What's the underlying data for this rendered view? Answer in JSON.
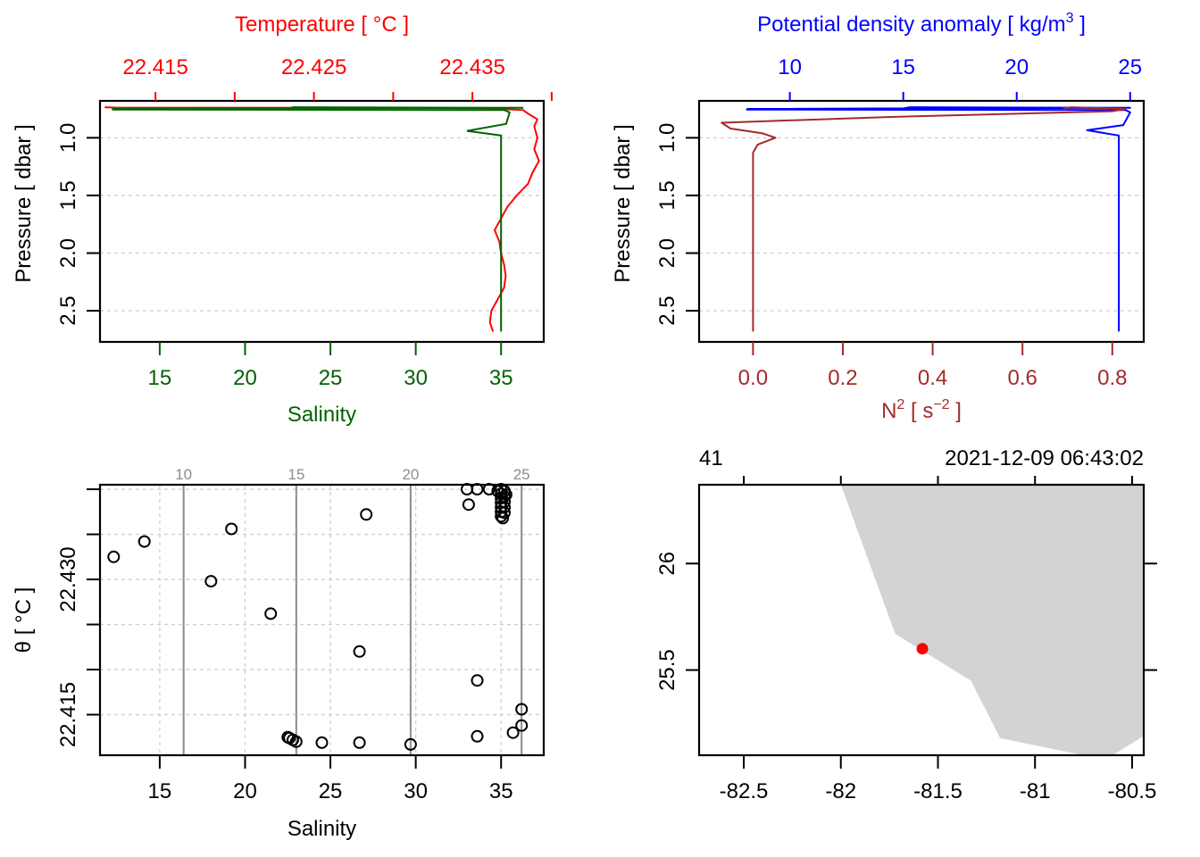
{
  "chart_data": [
    {
      "id": "profile-salinity-temperature",
      "type": "line",
      "title": "",
      "top_axis": {
        "label": "Temperature [ °C ]",
        "color": "#ff0000",
        "range": [
          22.4115,
          22.4395
        ],
        "ticks": [
          22.415,
          22.42,
          22.425,
          22.43,
          22.435,
          22.44
        ],
        "tick_labels": [
          "22.415",
          "",
          "22.425",
          "",
          "22.435",
          ""
        ]
      },
      "bottom_axis": {
        "label": "Salinity",
        "color": "#006400",
        "range": [
          11.5,
          37.5
        ],
        "ticks": [
          15,
          20,
          25,
          30,
          35
        ],
        "tick_labels": [
          "15",
          "20",
          "25",
          "30",
          "35"
        ]
      },
      "y_axis": {
        "label": "Pressure [ dbar ]",
        "range": [
          2.77,
          0.68
        ],
        "reversed": true,
        "ticks": [
          1.0,
          1.5,
          2.0,
          2.5
        ],
        "tick_labels": [
          "1.0",
          "1.5",
          "2.0",
          "2.5"
        ]
      },
      "grid": true,
      "series": [
        {
          "name": "Temperature",
          "color": "#ff0000",
          "axis": "top",
          "points": [
            [
              22.4118,
              0.735
            ],
            [
              22.4125,
              0.738
            ],
            [
              22.428,
              0.74
            ],
            [
              22.436,
              0.745
            ],
            [
              22.4382,
              0.76
            ],
            [
              22.4385,
              0.79
            ],
            [
              22.4391,
              0.84
            ],
            [
              22.4389,
              0.9
            ],
            [
              22.439,
              0.95
            ],
            [
              22.4391,
              1.0
            ],
            [
              22.4389,
              1.1
            ],
            [
              22.4392,
              1.2
            ],
            [
              22.4388,
              1.3
            ],
            [
              22.4385,
              1.4
            ],
            [
              22.4378,
              1.5
            ],
            [
              22.4372,
              1.6
            ],
            [
              22.4368,
              1.7
            ],
            [
              22.4364,
              1.8
            ],
            [
              22.4367,
              1.9
            ],
            [
              22.4368,
              2.0
            ],
            [
              22.437,
              2.1
            ],
            [
              22.4371,
              2.2
            ],
            [
              22.437,
              2.3
            ],
            [
              22.4366,
              2.4
            ],
            [
              22.4362,
              2.5
            ],
            [
              22.4361,
              2.6
            ],
            [
              22.4363,
              2.68
            ]
          ]
        },
        {
          "name": "Salinity",
          "color": "#006400",
          "axis": "bottom",
          "points": [
            [
              12.2,
              0.75
            ],
            [
              22.6,
              0.745
            ],
            [
              22.8,
              0.735
            ],
            [
              36.3,
              0.74
            ],
            [
              23.0,
              0.745
            ],
            [
              12.2,
              0.755
            ],
            [
              35.2,
              0.76
            ],
            [
              35.5,
              0.78
            ],
            [
              35.3,
              0.88
            ],
            [
              33.0,
              0.94
            ],
            [
              35.0,
              0.98
            ],
            [
              35.0,
              1.5
            ],
            [
              35.0,
              2.0
            ],
            [
              35.0,
              2.68
            ]
          ]
        }
      ]
    },
    {
      "id": "profile-density-n2",
      "type": "line",
      "title": "",
      "top_axis": {
        "label": "Potential density anomaly [ kg/m³ ]",
        "color": "#0000ff",
        "range": [
          6.0,
          25.6
        ],
        "ticks": [
          10,
          15,
          20,
          25
        ],
        "tick_labels": [
          "10",
          "15",
          "20",
          "25"
        ]
      },
      "bottom_axis": {
        "label": "N² [ s⁻² ]",
        "color": "#a52a2a",
        "range": [
          -0.12,
          0.87
        ],
        "ticks": [
          0.0,
          0.2,
          0.4,
          0.6,
          0.8
        ],
        "tick_labels": [
          "0.0",
          "0.2",
          "0.4",
          "0.6",
          "0.8"
        ]
      },
      "y_axis": {
        "label": "Pressure [ dbar ]",
        "range": [
          2.77,
          0.68
        ],
        "reversed": true,
        "ticks": [
          1.0,
          1.5,
          2.0,
          2.5
        ],
        "tick_labels": [
          "1.0",
          "1.5",
          "2.0",
          "2.5"
        ]
      },
      "grid": true,
      "series": [
        {
          "name": "Potential density anomaly",
          "color": "#0000ff",
          "axis": "top",
          "points": [
            [
              8.1,
              0.75
            ],
            [
              15.0,
              0.745
            ],
            [
              15.3,
              0.735
            ],
            [
              25.0,
              0.74
            ],
            [
              15.2,
              0.745
            ],
            [
              8.1,
              0.755
            ],
            [
              24.8,
              0.76
            ],
            [
              25.0,
              0.78
            ],
            [
              24.7,
              0.89
            ],
            [
              23.1,
              0.935
            ],
            [
              24.5,
              0.98
            ],
            [
              24.5,
              1.5
            ],
            [
              24.5,
              2.0
            ],
            [
              24.5,
              2.68
            ]
          ]
        },
        {
          "name": "N2",
          "color": "#a52a2a",
          "axis": "bottom",
          "points": [
            [
              0.69,
              0.745
            ],
            [
              0.71,
              0.735
            ],
            [
              0.83,
              0.75
            ],
            [
              0.8,
              0.77
            ],
            [
              0.3,
              0.82
            ],
            [
              -0.07,
              0.87
            ],
            [
              -0.05,
              0.92
            ],
            [
              0.02,
              0.96
            ],
            [
              0.05,
              1.0
            ],
            [
              0.01,
              1.06
            ],
            [
              0.0,
              1.13
            ],
            [
              0.0,
              1.5
            ],
            [
              0.0,
              2.0
            ],
            [
              0.0,
              2.68
            ]
          ]
        }
      ]
    },
    {
      "id": "ts-diagram",
      "type": "scatter",
      "title": "",
      "xlabel": "Salinity",
      "ylabel": "θ [ °C ]",
      "x_axis": {
        "range": [
          11.5,
          37.5
        ],
        "ticks": [
          15,
          20,
          25,
          30,
          35
        ],
        "tick_labels": [
          "15",
          "20",
          "25",
          "30",
          "35"
        ]
      },
      "y_axis": {
        "range": [
          22.4105,
          22.4405
        ],
        "ticks": [
          22.415,
          22.42,
          22.425,
          22.43,
          22.435,
          22.44
        ],
        "tick_labels": [
          "22.415",
          "",
          "",
          "22.430",
          "",
          ""
        ]
      },
      "density_contours": {
        "color": "#8c8c8c",
        "values": [
          10,
          15,
          20,
          25
        ],
        "labels": [
          "10",
          "15",
          "20",
          "25"
        ],
        "salinity_at": [
          16.4,
          23.0,
          29.7,
          36.2
        ]
      },
      "grid": true,
      "points": [
        [
          12.3,
          22.4325
        ],
        [
          14.1,
          22.4342
        ],
        [
          19.2,
          22.4356
        ],
        [
          18.0,
          22.4298
        ],
        [
          21.5,
          22.4262
        ],
        [
          27.1,
          22.4372
        ],
        [
          26.7,
          22.422
        ],
        [
          33.6,
          22.4188
        ],
        [
          36.2,
          22.4156
        ],
        [
          36.2,
          22.4138
        ],
        [
          35.7,
          22.413
        ],
        [
          33.6,
          22.4126
        ],
        [
          29.7,
          22.4117
        ],
        [
          26.7,
          22.4119
        ],
        [
          24.5,
          22.4119
        ],
        [
          23.0,
          22.412
        ],
        [
          22.8,
          22.4122
        ],
        [
          22.6,
          22.4124
        ],
        [
          22.5,
          22.4125
        ],
        [
          33.0,
          22.44
        ],
        [
          33.6,
          22.44
        ],
        [
          34.3,
          22.44
        ],
        [
          33.1,
          22.4383
        ],
        [
          34.8,
          22.4398
        ],
        [
          35.0,
          22.44
        ],
        [
          35.0,
          22.4395
        ],
        [
          35.0,
          22.439
        ],
        [
          35.0,
          22.4385
        ],
        [
          35.0,
          22.438
        ],
        [
          35.0,
          22.4375
        ],
        [
          35.0,
          22.437
        ],
        [
          35.2,
          22.4398
        ],
        [
          35.2,
          22.4392
        ],
        [
          35.2,
          22.4386
        ],
        [
          35.2,
          22.438
        ],
        [
          35.2,
          22.4374
        ],
        [
          35.1,
          22.4368
        ],
        [
          35.3,
          22.4394
        ]
      ]
    },
    {
      "id": "station-map",
      "type": "map",
      "title": "",
      "top_labels": {
        "station": "41",
        "time": "2021-12-09 06:43:02"
      },
      "x_axis": {
        "range": [
          -82.73,
          -80.44
        ],
        "ticks": [
          -82.5,
          -82,
          -81.5,
          -81,
          -80.5
        ],
        "tick_labels": [
          "-82.5",
          "-82",
          "-81.5",
          "-81",
          "-80.5"
        ]
      },
      "y_axis": {
        "range": [
          25.1,
          26.37
        ],
        "ticks": [
          25.5,
          26
        ],
        "tick_labels": [
          "25.5",
          "26"
        ]
      },
      "land_color": "#d3d3d3",
      "coastline": [
        [
          -82.0,
          26.37
        ],
        [
          -81.72,
          25.67
        ],
        [
          -81.33,
          25.45
        ],
        [
          -81.18,
          25.18
        ],
        [
          -80.75,
          25.1
        ],
        [
          -80.6,
          25.1
        ],
        [
          -80.44,
          25.19
        ],
        [
          -80.44,
          26.37
        ]
      ],
      "station": {
        "lon": -81.58,
        "lat": 25.6,
        "color": "#ff0000"
      }
    }
  ]
}
